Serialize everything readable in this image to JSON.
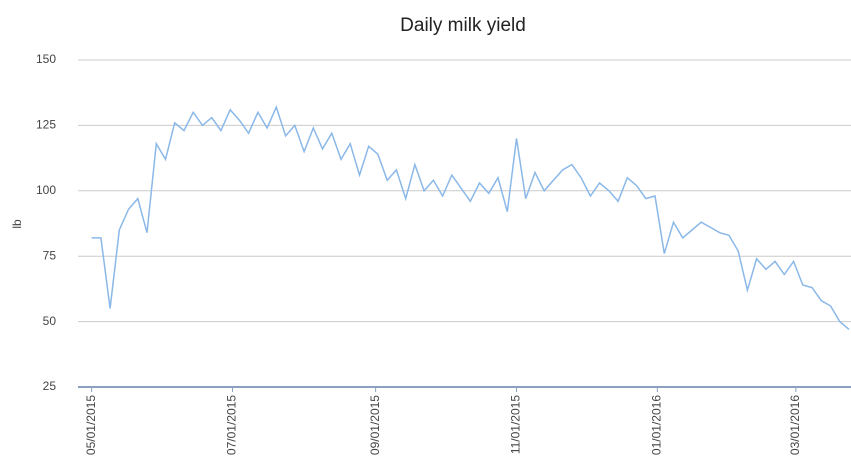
{
  "chart_data": {
    "type": "line",
    "title": "Daily milk yield",
    "y_label": "lb",
    "x": [
      "2015-05-01",
      "2015-05-05",
      "2015-05-09",
      "2015-05-13",
      "2015-05-17",
      "2015-05-21",
      "2015-05-25",
      "2015-05-29",
      "2015-06-02",
      "2015-06-06",
      "2015-06-10",
      "2015-06-14",
      "2015-06-18",
      "2015-06-22",
      "2015-06-26",
      "2015-06-30",
      "2015-07-04",
      "2015-07-08",
      "2015-07-12",
      "2015-07-16",
      "2015-07-20",
      "2015-07-24",
      "2015-07-28",
      "2015-08-01",
      "2015-08-05",
      "2015-08-09",
      "2015-08-13",
      "2015-08-17",
      "2015-08-21",
      "2015-08-25",
      "2015-08-29",
      "2015-09-02",
      "2015-09-06",
      "2015-09-10",
      "2015-09-14",
      "2015-09-18",
      "2015-09-22",
      "2015-09-26",
      "2015-09-30",
      "2015-10-04",
      "2015-10-08",
      "2015-10-12",
      "2015-10-16",
      "2015-10-20",
      "2015-10-24",
      "2015-10-28",
      "2015-11-01",
      "2015-11-05",
      "2015-11-09",
      "2015-11-13",
      "2015-11-17",
      "2015-11-21",
      "2015-11-25",
      "2015-11-29",
      "2015-12-03",
      "2015-12-07",
      "2015-12-11",
      "2015-12-15",
      "2015-12-19",
      "2015-12-23",
      "2015-12-27",
      "2015-12-31",
      "2016-01-04",
      "2016-01-08",
      "2016-01-12",
      "2016-01-16",
      "2016-01-20",
      "2016-01-24",
      "2016-01-28",
      "2016-02-01",
      "2016-02-05",
      "2016-02-09",
      "2016-02-13",
      "2016-02-17",
      "2016-02-21",
      "2016-02-25",
      "2016-02-29",
      "2016-03-04",
      "2016-03-08",
      "2016-03-12",
      "2016-03-16",
      "2016-03-20",
      "2016-03-24"
    ],
    "series": [
      {
        "name": "Daily milk yield",
        "color": "#8ab8e8",
        "values": [
          82,
          82,
          55,
          85,
          93,
          97,
          84,
          118,
          112,
          126,
          123,
          130,
          125,
          128,
          123,
          131,
          127,
          122,
          130,
          124,
          132,
          121,
          125,
          115,
          124,
          116,
          122,
          112,
          118,
          106,
          117,
          114,
          104,
          108,
          97,
          110,
          100,
          104,
          98,
          106,
          101,
          96,
          103,
          99,
          105,
          92,
          120,
          97,
          107,
          100,
          104,
          108,
          110,
          105,
          98,
          103,
          100,
          96,
          105,
          102,
          97,
          98,
          76,
          88,
          82,
          85,
          88,
          86,
          84,
          83,
          77,
          62,
          74,
          70,
          73,
          68,
          73,
          64,
          63,
          58,
          56,
          50,
          47
        ]
      }
    ],
    "xlim": [
      "2015-04-29",
      "2016-03-24"
    ],
    "xticks": [
      {
        "value": "2015-05-01",
        "label": "05/01/2015"
      },
      {
        "value": "2015-07-01",
        "label": "07/01/2015"
      },
      {
        "value": "2015-09-01",
        "label": "09/01/2015"
      },
      {
        "value": "2015-11-01",
        "label": "11/01/2015"
      },
      {
        "value": "2016-01-01",
        "label": "01/01/2016"
      },
      {
        "value": "2016-03-01",
        "label": "03/01/2016"
      }
    ],
    "ylim": [
      25,
      150
    ],
    "yticks": [
      25,
      50,
      75,
      100,
      125,
      150
    ],
    "grid": true
  }
}
